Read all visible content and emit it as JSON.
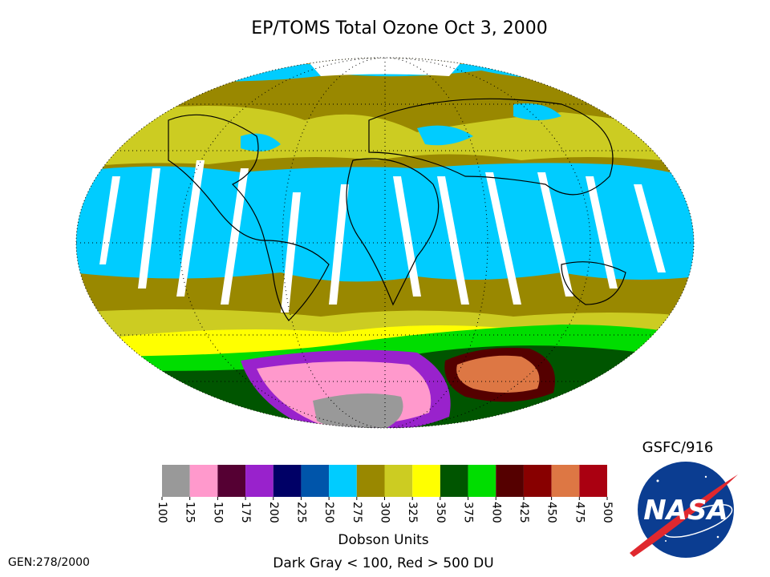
{
  "title": "EP/TOMS Total Ozone Oct  3, 2000",
  "credit": "GSFC/916",
  "generation": "GEN:278/2000",
  "logo": "NASA",
  "colorbar": {
    "label": "Dobson Units",
    "note": "Dark Gray < 100, Red > 500 DU",
    "ticks": [
      100,
      125,
      150,
      175,
      200,
      225,
      250,
      275,
      300,
      325,
      350,
      375,
      400,
      425,
      450,
      475,
      500
    ],
    "colors": [
      "#999999",
      "#ff99cc",
      "#550033",
      "#9922cc",
      "#000066",
      "#0055aa",
      "#00ccff",
      "#998800",
      "#cccc22",
      "#ffff00",
      "#005500",
      "#00dd00",
      "#550000",
      "#880000",
      "#dd7744",
      "#aa0011"
    ]
  }
}
